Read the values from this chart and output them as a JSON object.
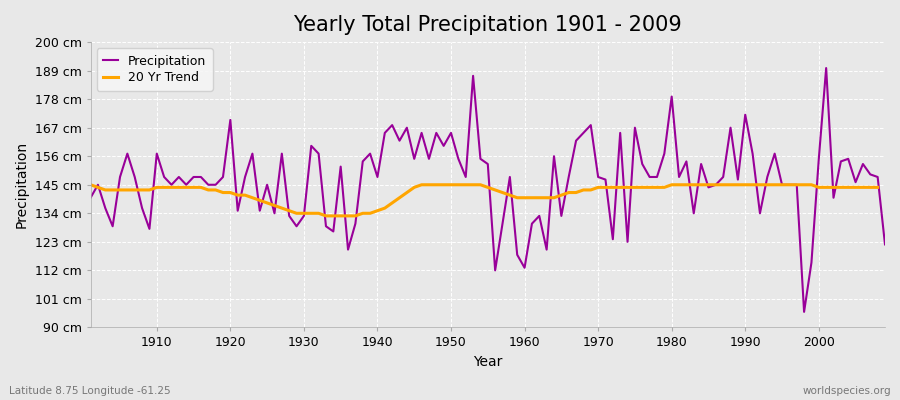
{
  "title": "Yearly Total Precipitation 1901 - 2009",
  "xlabel": "Year",
  "ylabel": "Precipitation",
  "footnote_left": "Latitude 8.75 Longitude -61.25",
  "footnote_right": "worldspecies.org",
  "years": [
    1901,
    1902,
    1903,
    1904,
    1905,
    1906,
    1907,
    1908,
    1909,
    1910,
    1911,
    1912,
    1913,
    1914,
    1915,
    1916,
    1917,
    1918,
    1919,
    1920,
    1921,
    1922,
    1923,
    1924,
    1925,
    1926,
    1927,
    1928,
    1929,
    1930,
    1931,
    1932,
    1933,
    1934,
    1935,
    1936,
    1937,
    1938,
    1939,
    1940,
    1941,
    1942,
    1943,
    1944,
    1945,
    1946,
    1947,
    1948,
    1949,
    1950,
    1951,
    1952,
    1953,
    1954,
    1955,
    1956,
    1957,
    1958,
    1959,
    1960,
    1961,
    1962,
    1963,
    1964,
    1965,
    1966,
    1967,
    1968,
    1969,
    1970,
    1971,
    1972,
    1973,
    1974,
    1975,
    1976,
    1977,
    1978,
    1979,
    1980,
    1981,
    1982,
    1983,
    1984,
    1985,
    1986,
    1987,
    1988,
    1989,
    1990,
    1991,
    1992,
    1993,
    1994,
    1995,
    1996,
    1997,
    1998,
    1999,
    2000,
    2001,
    2002,
    2003,
    2004,
    2005,
    2006,
    2007,
    2008,
    2009
  ],
  "precip": [
    140,
    145,
    136,
    129,
    148,
    157,
    148,
    136,
    128,
    157,
    148,
    145,
    148,
    145,
    148,
    148,
    145,
    145,
    148,
    170,
    135,
    148,
    157,
    135,
    145,
    134,
    157,
    133,
    129,
    133,
    160,
    157,
    129,
    127,
    152,
    120,
    130,
    154,
    157,
    148,
    165,
    168,
    162,
    167,
    155,
    165,
    155,
    165,
    160,
    165,
    155,
    148,
    187,
    155,
    153,
    112,
    130,
    148,
    118,
    113,
    130,
    133,
    120,
    156,
    133,
    148,
    162,
    165,
    168,
    148,
    147,
    124,
    165,
    123,
    167,
    153,
    148,
    148,
    157,
    179,
    148,
    154,
    134,
    153,
    144,
    145,
    148,
    167,
    147,
    172,
    157,
    134,
    148,
    157,
    145,
    145,
    145,
    96,
    115,
    155,
    190,
    140,
    154,
    155,
    146,
    153,
    149,
    148,
    122
  ],
  "trend": [
    145,
    144,
    143,
    143,
    143,
    143,
    143,
    143,
    143,
    144,
    144,
    144,
    144,
    144,
    144,
    144,
    143,
    143,
    142,
    142,
    141,
    141,
    140,
    139,
    138,
    137,
    136,
    135,
    134,
    134,
    134,
    134,
    133,
    133,
    133,
    133,
    133,
    134,
    134,
    135,
    136,
    138,
    140,
    142,
    144,
    145,
    145,
    145,
    145,
    145,
    145,
    145,
    145,
    145,
    144,
    143,
    142,
    141,
    140,
    140,
    140,
    140,
    140,
    140,
    141,
    142,
    142,
    143,
    143,
    144,
    144,
    144,
    144,
    144,
    144,
    144,
    144,
    144,
    144,
    145,
    145,
    145,
    145,
    145,
    145,
    145,
    145,
    145,
    145,
    145,
    145,
    145,
    145,
    145,
    145,
    145,
    145,
    145,
    145,
    144,
    144,
    144,
    144,
    144,
    144,
    144,
    144,
    144,
    null
  ],
  "ylim": [
    90,
    200
  ],
  "yticks": [
    90,
    101,
    112,
    123,
    134,
    145,
    156,
    167,
    178,
    189,
    200
  ],
  "ytick_labels": [
    "90 cm",
    "101 cm",
    "112 cm",
    "123 cm",
    "134 cm",
    "145 cm",
    "156 cm",
    "167 cm",
    "178 cm",
    "189 cm",
    "200 cm"
  ],
  "xlim": [
    1901,
    2009
  ],
  "xticks": [
    1910,
    1920,
    1930,
    1940,
    1950,
    1960,
    1970,
    1980,
    1990,
    2000
  ],
  "precip_color": "#990099",
  "trend_color": "#FFA500",
  "bg_color": "#E8E8E8",
  "plot_bg_color": "#E8E8E8",
  "grid_color": "#FFFFFF",
  "title_fontsize": 15,
  "label_fontsize": 10,
  "tick_fontsize": 9,
  "legend_items": [
    "Precipitation",
    "20 Yr Trend"
  ]
}
